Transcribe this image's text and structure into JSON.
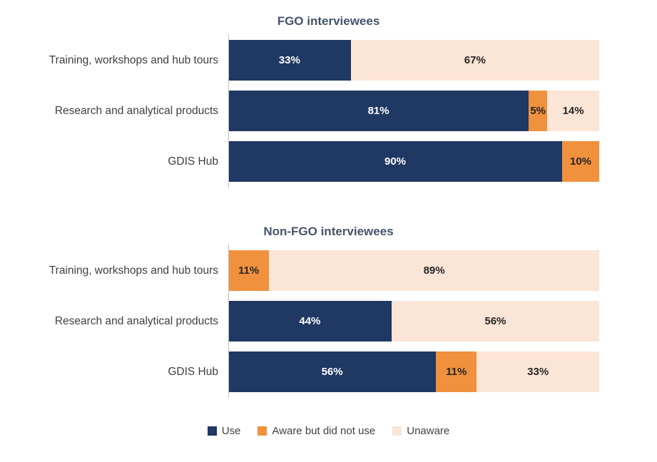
{
  "colors": {
    "series": [
      "#1F3864",
      "#F0913D",
      "#FBE5D6"
    ],
    "series_label_text": [
      "#FFFFFF",
      "#262626",
      "#262626"
    ],
    "axis_line": "#BFBFBF",
    "title_text": "#44546A",
    "category_text": "#3F3F3F",
    "legend_text": "#404040"
  },
  "chart_data": [
    {
      "type": "bar",
      "orientation": "horizontal",
      "stacked": true,
      "title": "FGO interviewees",
      "categories": [
        "Training, workshops and hub tours",
        "Research and analytical products",
        "GDIS Hub"
      ],
      "series": [
        {
          "name": "Use",
          "values": [
            33,
            81,
            90
          ]
        },
        {
          "name": "Aware but did not use",
          "values": [
            0,
            5,
            10
          ]
        },
        {
          "name": "Unaware",
          "values": [
            67,
            14,
            0
          ]
        }
      ],
      "value_suffix": "%",
      "xlim": [
        0,
        100
      ],
      "grid": false,
      "legend_position": "none"
    },
    {
      "type": "bar",
      "orientation": "horizontal",
      "stacked": true,
      "title": "Non-FGO interviewees",
      "categories": [
        "Training, workshops and hub tours",
        "Research and analytical products",
        "GDIS Hub"
      ],
      "series": [
        {
          "name": "Use",
          "values": [
            0,
            44,
            56
          ]
        },
        {
          "name": "Aware but did not use",
          "values": [
            11,
            0,
            11
          ]
        },
        {
          "name": "Unaware",
          "values": [
            89,
            56,
            33
          ]
        }
      ],
      "value_suffix": "%",
      "xlim": [
        0,
        100
      ],
      "grid": false,
      "legend_position": "none"
    }
  ],
  "legend": {
    "keys": [
      "use",
      "aware-but-did-not-use",
      "unaware"
    ],
    "items": [
      {
        "label": "Use",
        "color": "#1F3864"
      },
      {
        "label": "Aware but did not use",
        "color": "#F0913D"
      },
      {
        "label": "Unaware",
        "color": "#FBE5D6"
      }
    ]
  }
}
